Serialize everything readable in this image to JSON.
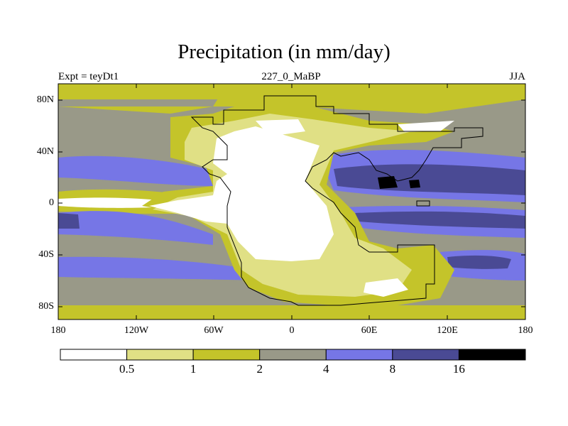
{
  "title": "Precipitation (in mm/day)",
  "subtitle_left": "Expt = teyDt1",
  "subtitle_center": "227_0_MaBP",
  "subtitle_right": "JJA",
  "map": {
    "projection": "cylindrical equidistant",
    "lon_range": [
      -180,
      180
    ],
    "lat_range": [
      -90,
      90
    ],
    "x_ticks": [
      "180",
      "120W",
      "60W",
      "0",
      "60E",
      "120E",
      "180"
    ],
    "y_ticks": [
      "80N",
      "40N",
      "0",
      "40S",
      "80S"
    ],
    "features": [
      "Pangea supercontinent coastline",
      "precipitation contour bands"
    ]
  },
  "colorbar": {
    "levels": [
      "0.5",
      "1",
      "2",
      "4",
      "8",
      "16"
    ],
    "colors": [
      "#ffffff",
      "#e0e085",
      "#c4c42a",
      "#999988",
      "#7676e6",
      "#4a4a94",
      "#000000"
    ]
  },
  "chart_data": {
    "type": "heatmap",
    "title": "Precipitation (in mm/day)",
    "variable": "Precipitation",
    "units": "mm/day",
    "season": "JJA",
    "experiment": "teyDt1",
    "period": "227_0_MaBP",
    "xlabel": "",
    "ylabel": "",
    "xlim": [
      -180,
      180
    ],
    "ylim": [
      -90,
      90
    ],
    "contour_levels": [
      0.5,
      1,
      2,
      4,
      8,
      16
    ],
    "legend": "bottom colorbar"
  }
}
